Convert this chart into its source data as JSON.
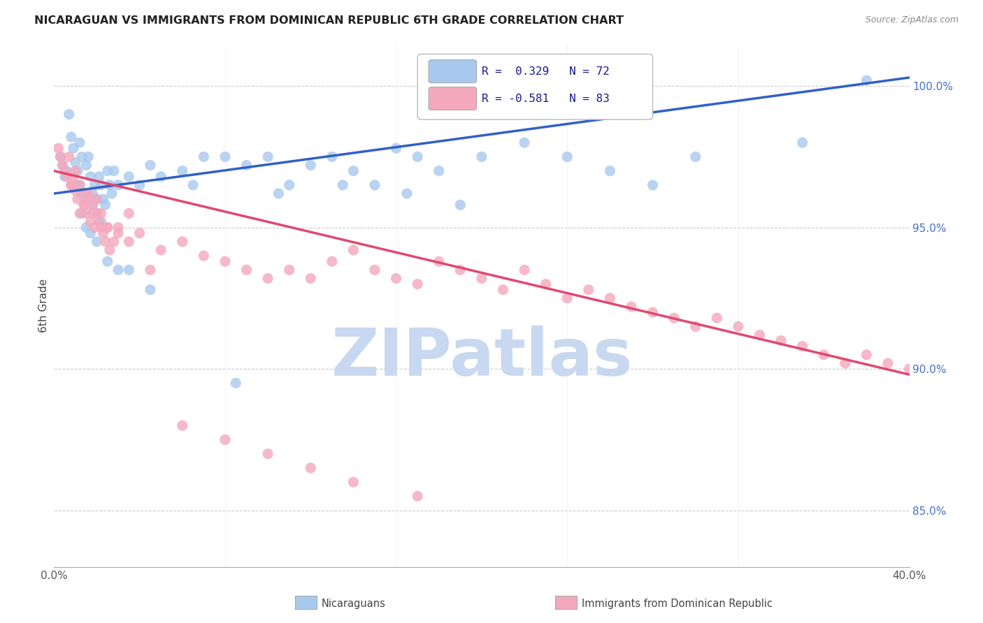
{
  "title": "NICARAGUAN VS IMMIGRANTS FROM DOMINICAN REPUBLIC 6TH GRADE CORRELATION CHART",
  "source": "Source: ZipAtlas.com",
  "ylabel": "6th Grade",
  "right_yticks": [
    85.0,
    90.0,
    95.0,
    100.0
  ],
  "xlim": [
    0.0,
    40.0
  ],
  "ylim": [
    83.0,
    101.5
  ],
  "blue_R": 0.329,
  "blue_N": 72,
  "pink_R": -0.581,
  "pink_N": 83,
  "blue_color": "#A8C8EE",
  "pink_color": "#F4A8BC",
  "blue_line_color": "#3060C8",
  "pink_line_color": "#E04870",
  "blue_line_x0": 0.0,
  "blue_line_y0": 96.2,
  "blue_line_x1": 40.0,
  "blue_line_y1": 100.3,
  "pink_line_x0": 0.0,
  "pink_line_y0": 97.0,
  "pink_line_x1": 40.0,
  "pink_line_y1": 89.8,
  "watermark": "ZIPatlas",
  "watermark_color": "#C8D8F0",
  "blue_scatter_x": [
    0.3,
    0.4,
    0.5,
    0.6,
    0.7,
    0.8,
    0.9,
    1.0,
    1.0,
    1.1,
    1.2,
    1.2,
    1.3,
    1.4,
    1.5,
    1.5,
    1.6,
    1.7,
    1.8,
    1.8,
    1.9,
    2.0,
    2.0,
    2.1,
    2.2,
    2.3,
    2.4,
    2.5,
    2.6,
    2.7,
    2.8,
    3.0,
    3.5,
    4.0,
    4.5,
    5.0,
    6.0,
    7.0,
    8.0,
    9.0,
    10.0,
    11.0,
    12.0,
    13.0,
    14.0,
    15.0,
    16.0,
    17.0,
    18.0,
    20.0,
    22.0,
    24.0,
    26.0,
    28.0,
    30.0,
    35.0,
    38.0,
    1.3,
    1.5,
    1.7,
    2.0,
    2.2,
    2.5,
    3.0,
    3.5,
    4.5,
    6.5,
    8.5,
    10.5,
    13.5,
    16.5,
    19.0
  ],
  "blue_scatter_y": [
    97.5,
    97.2,
    96.8,
    97.0,
    99.0,
    98.2,
    97.8,
    97.3,
    96.5,
    97.0,
    98.0,
    96.5,
    97.5,
    96.2,
    97.2,
    96.0,
    97.5,
    96.8,
    96.2,
    95.8,
    96.5,
    96.0,
    95.5,
    96.8,
    96.5,
    96.0,
    95.8,
    97.0,
    96.5,
    96.2,
    97.0,
    96.5,
    96.8,
    96.5,
    97.2,
    96.8,
    97.0,
    97.5,
    97.5,
    97.2,
    97.5,
    96.5,
    97.2,
    97.5,
    97.0,
    96.5,
    97.8,
    97.5,
    97.0,
    97.5,
    98.0,
    97.5,
    97.0,
    96.5,
    97.5,
    98.0,
    100.2,
    95.5,
    95.0,
    94.8,
    94.5,
    95.2,
    93.8,
    93.5,
    93.5,
    92.8,
    96.5,
    89.5,
    96.2,
    96.5,
    96.2,
    95.8
  ],
  "pink_scatter_x": [
    0.2,
    0.3,
    0.4,
    0.5,
    0.6,
    0.7,
    0.8,
    0.9,
    1.0,
    1.1,
    1.2,
    1.3,
    1.4,
    1.5,
    1.6,
    1.7,
    1.8,
    1.9,
    2.0,
    2.1,
    2.2,
    2.3,
    2.4,
    2.5,
    2.6,
    2.8,
    3.0,
    3.5,
    4.0,
    5.0,
    6.0,
    7.0,
    8.0,
    9.0,
    10.0,
    11.0,
    12.0,
    13.0,
    14.0,
    15.0,
    16.0,
    17.0,
    18.0,
    19.0,
    20.0,
    21.0,
    22.0,
    23.0,
    24.0,
    25.0,
    26.0,
    27.0,
    28.0,
    29.0,
    30.0,
    31.0,
    32.0,
    33.0,
    34.0,
    35.0,
    36.0,
    37.0,
    38.0,
    39.0,
    40.0,
    0.8,
    1.0,
    1.2,
    1.4,
    1.6,
    1.8,
    2.0,
    2.2,
    2.5,
    3.0,
    3.5,
    4.5,
    6.0,
    8.0,
    10.0,
    12.0,
    14.0,
    17.0
  ],
  "pink_scatter_y": [
    97.8,
    97.5,
    97.2,
    97.0,
    96.8,
    97.5,
    96.5,
    96.8,
    96.3,
    96.0,
    96.5,
    96.2,
    95.8,
    95.5,
    96.0,
    95.2,
    95.8,
    95.0,
    95.5,
    95.2,
    95.0,
    94.8,
    94.5,
    95.0,
    94.2,
    94.5,
    95.0,
    95.5,
    94.8,
    94.2,
    94.5,
    94.0,
    93.8,
    93.5,
    93.2,
    93.5,
    93.2,
    93.8,
    94.2,
    93.5,
    93.2,
    93.0,
    93.8,
    93.5,
    93.2,
    92.8,
    93.5,
    93.0,
    92.5,
    92.8,
    92.5,
    92.2,
    92.0,
    91.8,
    91.5,
    91.8,
    91.5,
    91.2,
    91.0,
    90.8,
    90.5,
    90.2,
    90.5,
    90.2,
    90.0,
    96.5,
    97.0,
    95.5,
    95.8,
    96.2,
    95.5,
    96.0,
    95.5,
    95.0,
    94.8,
    94.5,
    93.5,
    88.0,
    87.5,
    87.0,
    86.5,
    86.0,
    85.5
  ]
}
